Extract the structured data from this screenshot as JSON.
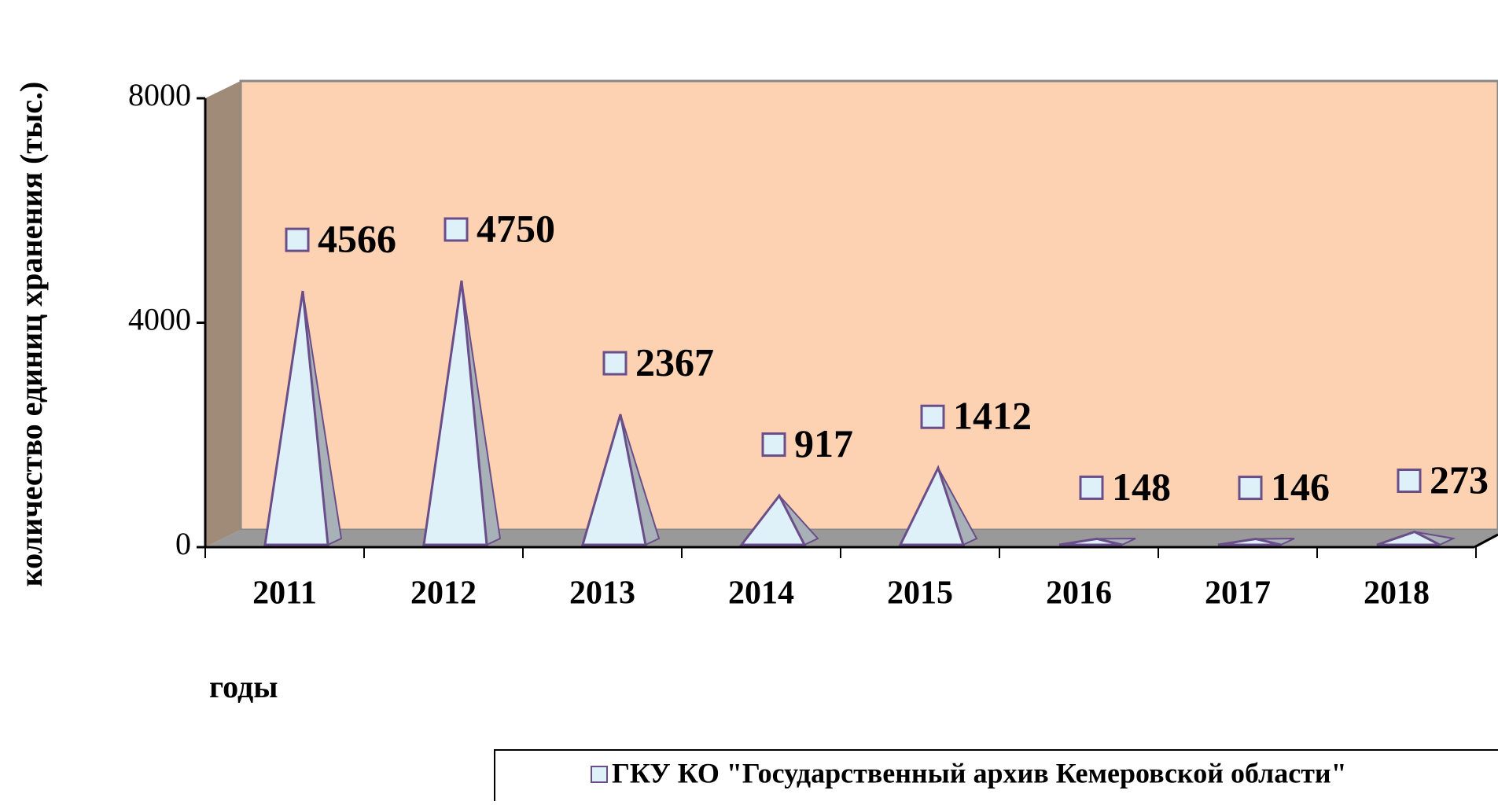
{
  "chart_data": {
    "type": "pyramid",
    "y_label": "количество единиц хранения (тыс.)",
    "x_label": "годы",
    "categories": [
      "2011",
      "2012",
      "2013",
      "2014",
      "2015",
      "2016",
      "2017",
      "2018"
    ],
    "series": [
      {
        "name": "ГКУ КО \"Государственный архив Кемеровской области\"",
        "color": "#dff1f8",
        "values": [
          4566,
          4750,
          2367,
          917,
          1412,
          148,
          146,
          273
        ]
      }
    ],
    "ylim": [
      0,
      8000
    ],
    "yticks": [
      0,
      4000,
      8000
    ]
  }
}
